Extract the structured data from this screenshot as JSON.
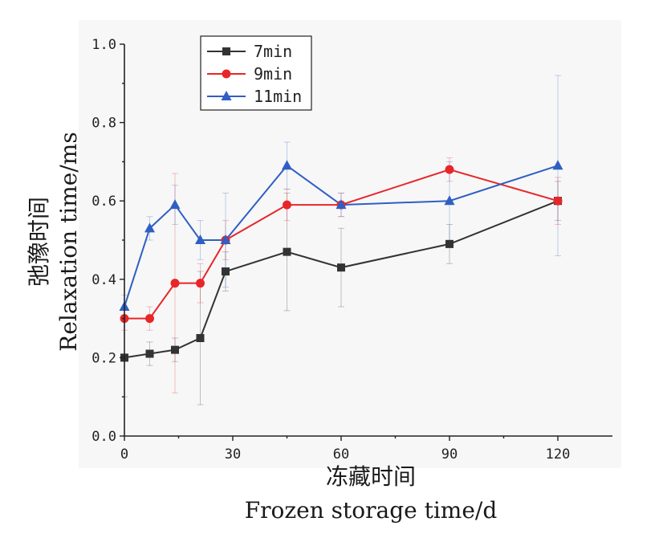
{
  "chart_data": {
    "type": "line",
    "xlabel_cn": "冻藏时间",
    "xlabel_en": "Frozen storage time/d",
    "ylabel_cn": "弛豫时间",
    "ylabel_en": "Relaxation time/ms",
    "xlim": [
      0,
      135
    ],
    "ylim": [
      0,
      1.0
    ],
    "x_ticks": [
      0,
      30,
      60,
      90,
      120
    ],
    "x_tick_labels": [
      "0",
      "30",
      "60",
      "90",
      "120"
    ],
    "y_ticks": [
      0.0,
      0.2,
      0.4,
      0.6,
      0.8,
      1.0
    ],
    "y_tick_labels": [
      "0.0",
      "0.2",
      "0.4",
      "0.6",
      "0.8",
      "1.0"
    ],
    "legend_position": "top-left",
    "grid": false,
    "series": [
      {
        "name": "7min",
        "color": "#333333",
        "marker": "square",
        "x": [
          0,
          7,
          14,
          21,
          28,
          45,
          60,
          90,
          120
        ],
        "y": [
          0.2,
          0.21,
          0.22,
          0.25,
          0.42,
          0.47,
          0.43,
          0.49,
          0.6
        ],
        "err": [
          0.1,
          0.03,
          0.03,
          0.17,
          0.05,
          0.15,
          0.1,
          0.05,
          0.05
        ]
      },
      {
        "name": "9min",
        "color": "#e8262a",
        "marker": "circle",
        "x": [
          0,
          7,
          14,
          21,
          28,
          45,
          60,
          90,
          120
        ],
        "y": [
          0.3,
          0.3,
          0.39,
          0.39,
          0.5,
          0.59,
          0.59,
          0.68,
          0.6
        ],
        "err": [
          0.03,
          0.03,
          0.28,
          0.05,
          0.05,
          0.04,
          0.03,
          0.03,
          0.06
        ]
      },
      {
        "name": "11min",
        "color": "#2f5fc4",
        "marker": "triangle",
        "x": [
          0,
          7,
          14,
          21,
          28,
          45,
          60,
          90,
          120
        ],
        "y": [
          0.33,
          0.53,
          0.59,
          0.5,
          0.5,
          0.69,
          0.59,
          0.6,
          0.69
        ],
        "err": [
          0.03,
          0.03,
          0.05,
          0.05,
          0.12,
          0.06,
          0.03,
          0.1,
          0.23
        ]
      }
    ]
  }
}
